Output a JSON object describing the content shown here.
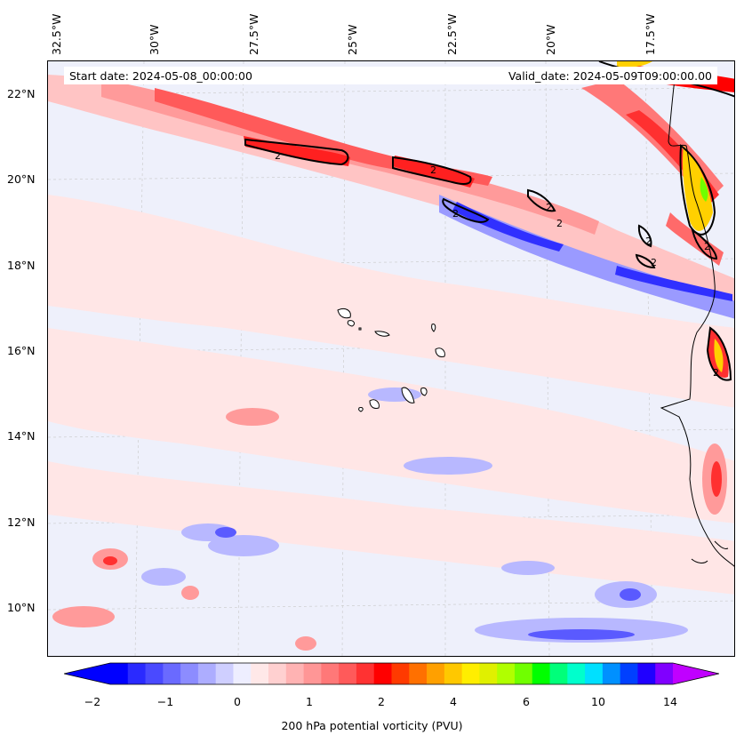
{
  "map": {
    "longitude_labels": [
      "32.5°W",
      "30°W",
      "27.5°W",
      "25°W",
      "22.5°W",
      "20°W",
      "17.5°W"
    ],
    "latitude_labels": [
      "22°N",
      "20°N",
      "18°N",
      "16°N",
      "14°N",
      "12°N",
      "10°N"
    ],
    "start_date": "Start date: 2024-05-08_00:00:00",
    "valid_date": "Valid_date: 2024-05-09T09:00:00.00",
    "contour_label": "2",
    "background_color": "#eef0fb"
  },
  "colorbar": {
    "label": "200 hPa potential vorticity (PVU)",
    "tick_labels": [
      "−2",
      "−1",
      "0",
      "1",
      "2",
      "4",
      "6",
      "10",
      "14"
    ],
    "colors": [
      "#0000ff",
      "#2a2aff",
      "#4a4aff",
      "#6a6aff",
      "#8c8cff",
      "#adadff",
      "#cfcfff",
      "#eeeeff",
      "#ffe8e8",
      "#ffd0d0",
      "#ffb3b3",
      "#ff9696",
      "#ff7878",
      "#ff5a5a",
      "#ff3232",
      "#ff0000",
      "#ff3a00",
      "#ff7000",
      "#ffa000",
      "#ffc800",
      "#ffee00",
      "#e0f000",
      "#b0ff00",
      "#70ff00",
      "#00ff00",
      "#00ff7a",
      "#00ffcc",
      "#00e0ff",
      "#0090ff",
      "#0040ff",
      "#2000ff",
      "#8000ff"
    ],
    "under_color": "#0000ff",
    "over_color": "#c000ff"
  }
}
